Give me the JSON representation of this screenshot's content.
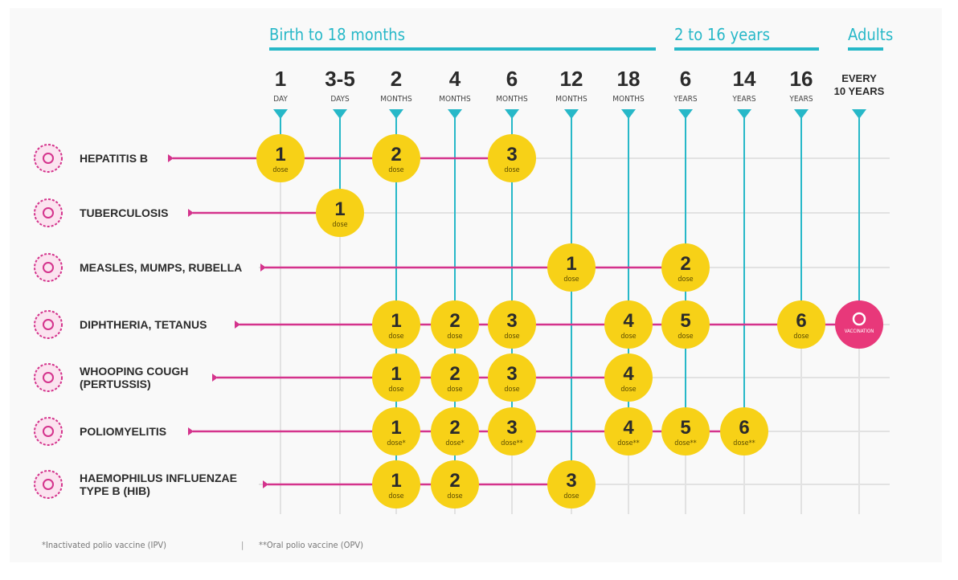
{
  "periods": [
    {
      "label": "Birth to 18 months",
      "from": 0,
      "to": 6
    },
    {
      "label": "2 to 16 years",
      "from": 7,
      "to": 9
    },
    {
      "label": "Adults",
      "from": 10,
      "to": 10
    }
  ],
  "columns": [
    {
      "num": "1",
      "unit": "DAY"
    },
    {
      "num": "3-5",
      "unit": "DAYS"
    },
    {
      "num": "2",
      "unit": "MONTHS"
    },
    {
      "num": "4",
      "unit": "MONTHS"
    },
    {
      "num": "6",
      "unit": "MONTHS"
    },
    {
      "num": "12",
      "unit": "MONTHS"
    },
    {
      "num": "18",
      "unit": "MONTHS"
    },
    {
      "num": "6",
      "unit": "YEARS"
    },
    {
      "num": "14",
      "unit": "YEARS"
    },
    {
      "num": "16",
      "unit": "YEARS"
    },
    {
      "num": "EVERY",
      "unit": "10 YEARS"
    }
  ],
  "dose_word": "dose",
  "vaccination_label": "VACCINATION",
  "vaccines": [
    {
      "name": [
        "HEPATITIS B"
      ],
      "icon": "hepatitis-b-virus-icon",
      "doses": [
        [
          0,
          "1",
          ""
        ],
        [
          2,
          "2",
          ""
        ],
        [
          4,
          "3",
          ""
        ]
      ]
    },
    {
      "name": [
        "TUBERCULOSIS"
      ],
      "icon": "tuberculosis-bacteria-icon",
      "doses": [
        [
          1,
          "1",
          ""
        ]
      ]
    },
    {
      "name": [
        "MEASLES, MUMPS, RUBELLA"
      ],
      "icon": "measles-virus-icon",
      "doses": [
        [
          5,
          "1",
          ""
        ],
        [
          7,
          "2",
          ""
        ]
      ]
    },
    {
      "name": [
        "DIPHTHERIA, TETANUS"
      ],
      "icon": "diphtheria-bacteria-icon",
      "doses": [
        [
          2,
          "1",
          ""
        ],
        [
          3,
          "2",
          ""
        ],
        [
          4,
          "3",
          ""
        ],
        [
          6,
          "4",
          ""
        ],
        [
          7,
          "5",
          ""
        ],
        [
          9,
          "6",
          ""
        ]
      ],
      "booster": 10
    },
    {
      "name": [
        "WHOOPING COUGH",
        "(PERTUSSIS)"
      ],
      "icon": "pertussis-bacteria-icon",
      "doses": [
        [
          2,
          "1",
          ""
        ],
        [
          3,
          "2",
          ""
        ],
        [
          4,
          "3",
          ""
        ],
        [
          6,
          "4",
          ""
        ]
      ]
    },
    {
      "name": [
        "POLIOMYELITIS"
      ],
      "icon": "polio-virus-icon",
      "doses": [
        [
          2,
          "1",
          "*"
        ],
        [
          3,
          "2",
          "*"
        ],
        [
          4,
          "3",
          "**"
        ],
        [
          6,
          "4",
          "**"
        ],
        [
          7,
          "5",
          "**"
        ],
        [
          8,
          "6",
          "**"
        ]
      ]
    },
    {
      "name": [
        "HAEMOPHILUS INFLUENZAE",
        "TYPE B (HIB)"
      ],
      "icon": "hib-bacteria-icon",
      "doses": [
        [
          2,
          "1",
          ""
        ],
        [
          3,
          "2",
          ""
        ],
        [
          5,
          "3",
          ""
        ]
      ]
    }
  ],
  "footnotes": [
    "*Inactivated polio vaccine (IPV)",
    "|",
    "**Oral polio vaccine (OPV)"
  ],
  "colors": {
    "cyan": "#27b8c8",
    "magenta": "#d4338c",
    "yellow": "#f7d117",
    "pink": "#e8387a",
    "grid": "#e2e2e2",
    "text": "#2b2b2b"
  }
}
